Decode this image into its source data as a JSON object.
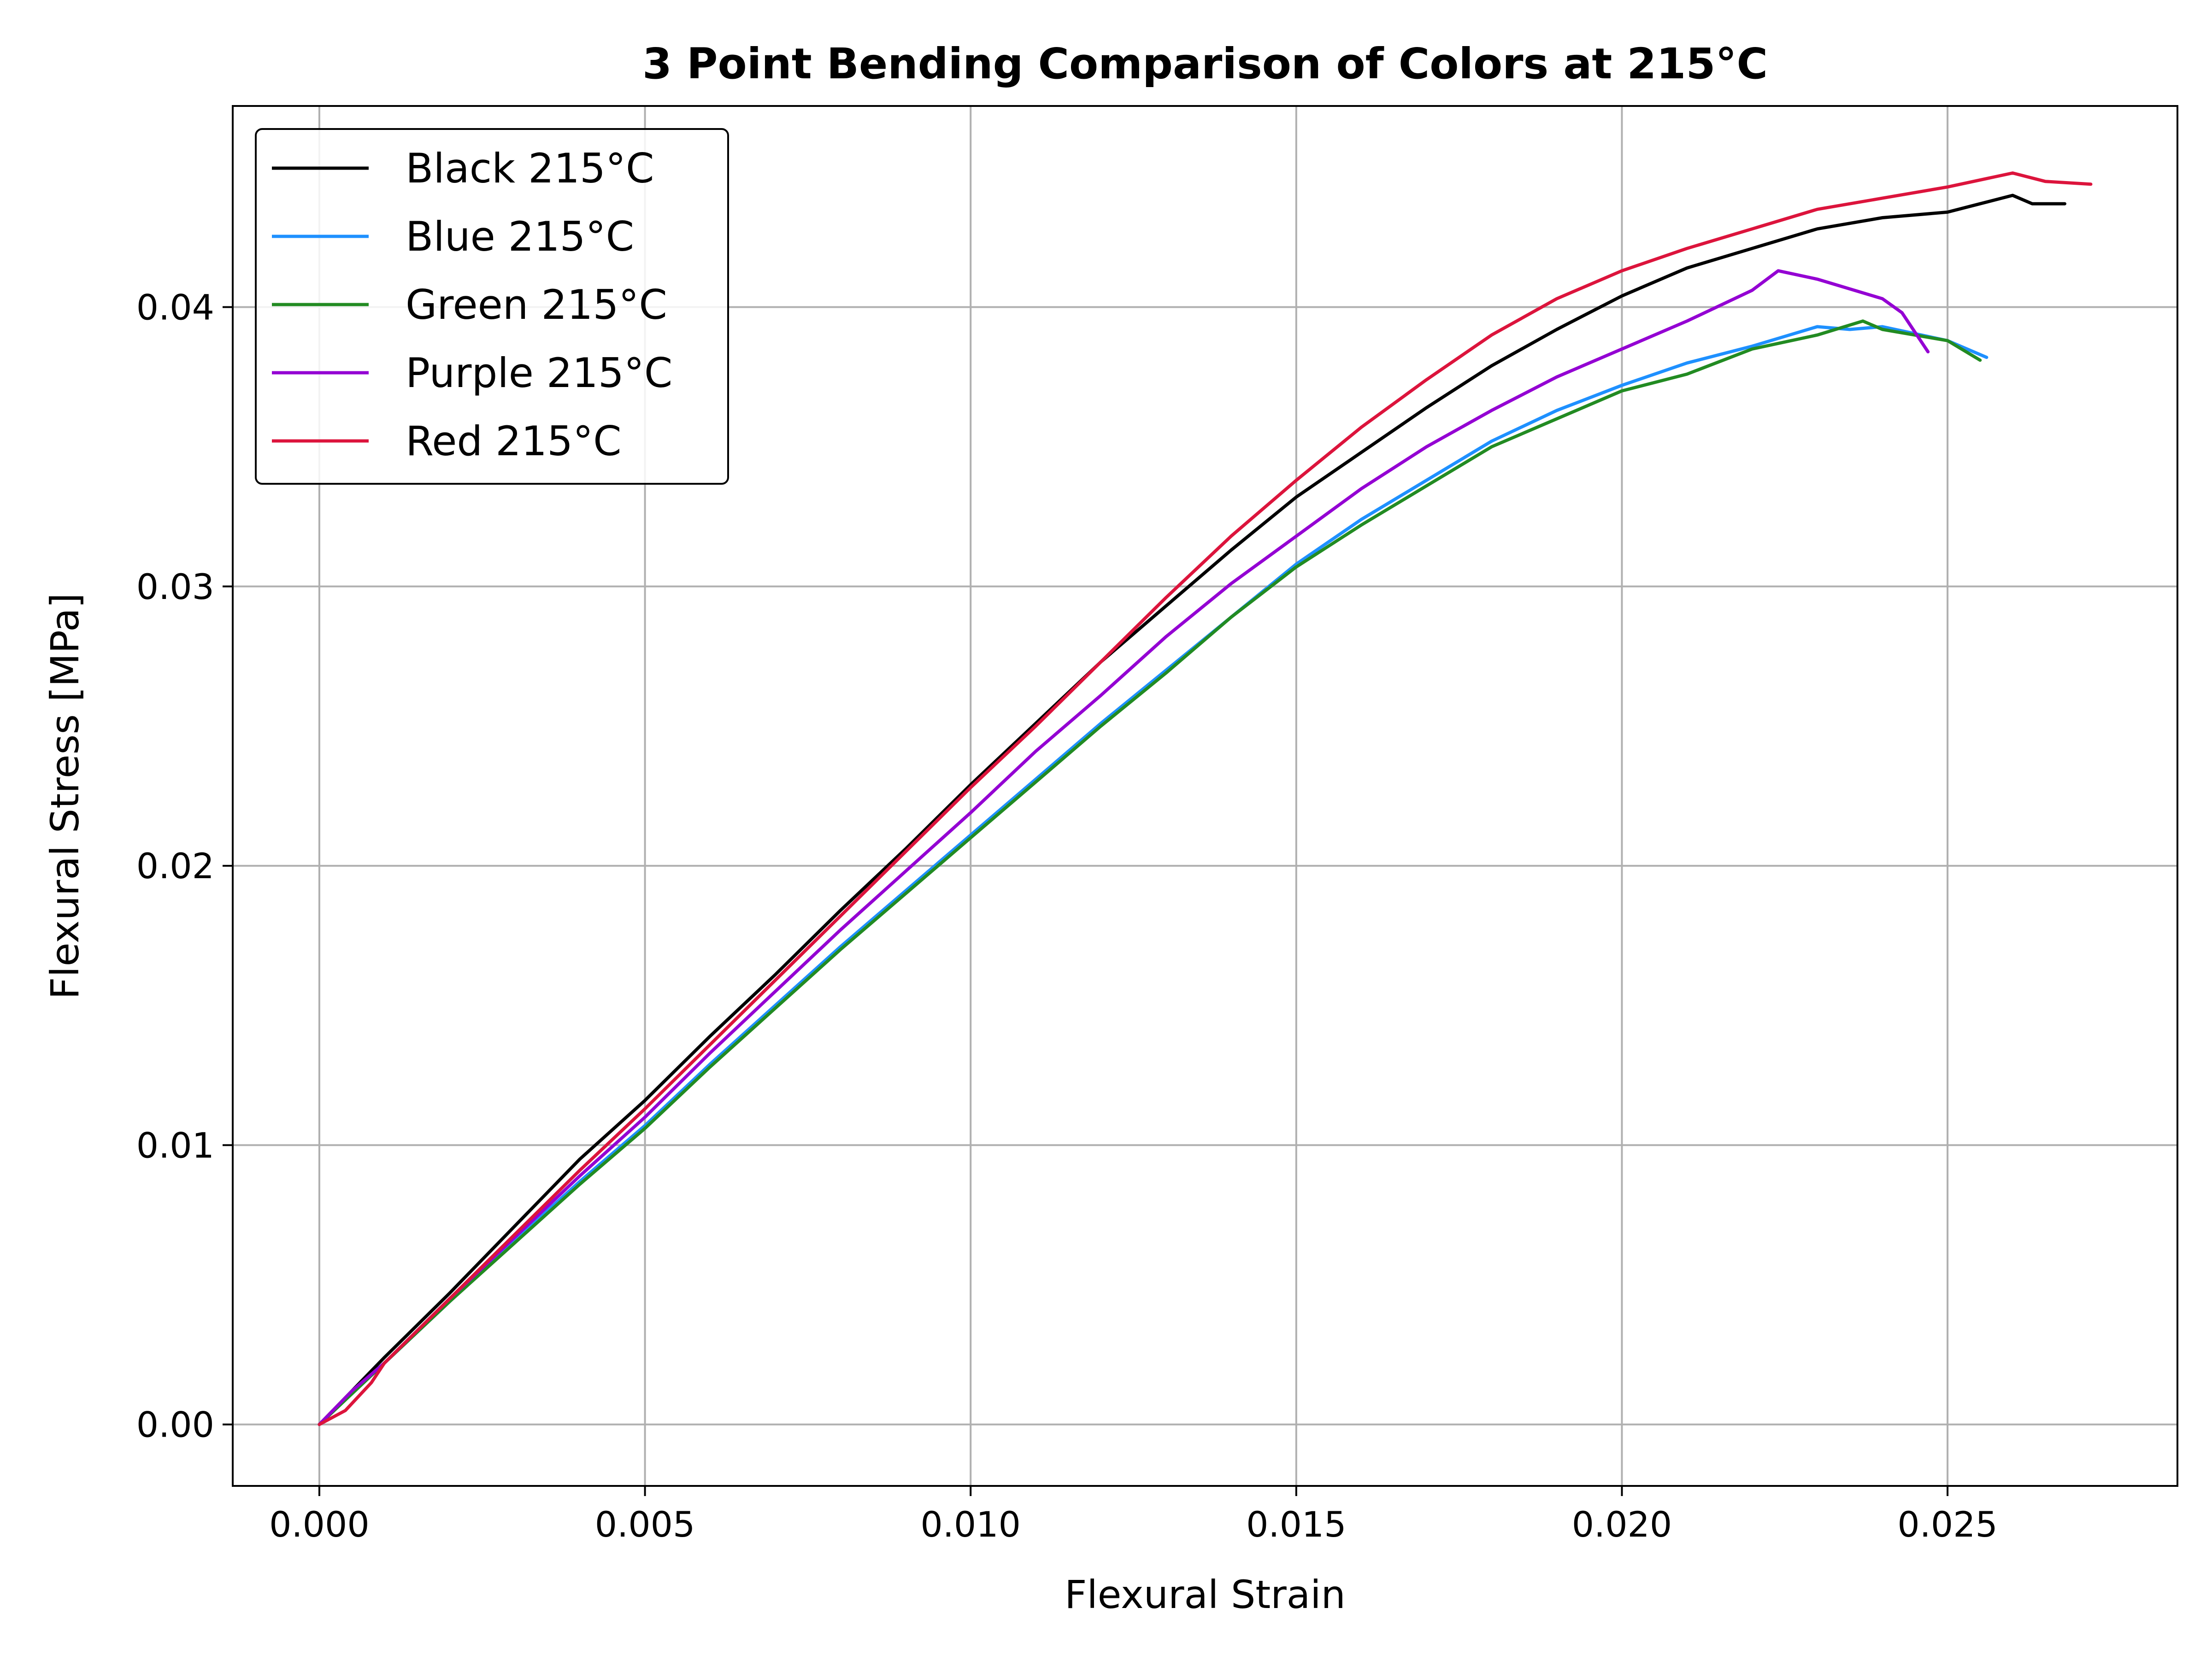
{
  "chart_data": {
    "type": "line",
    "title": "3 Point Bending Comparison of Colors at 215°C",
    "xlabel": "Flexural Strain",
    "ylabel": "Flexural Stress [MPa]",
    "xlim": [
      -0.00133,
      0.02853
    ],
    "ylim": [
      -0.0022,
      0.0472
    ],
    "grid": true,
    "legend_position": "top-left",
    "x_ticks": [
      "0.000",
      "0.005",
      "0.010",
      "0.015",
      "0.020",
      "0.025"
    ],
    "x_tick_values": [
      0,
      0.005,
      0.01,
      0.015,
      0.02,
      0.025
    ],
    "y_ticks": [
      "0.00",
      "0.01",
      "0.02",
      "0.03",
      "0.04"
    ],
    "y_tick_values": [
      0,
      0.01,
      0.02,
      0.03,
      0.04
    ],
    "series": [
      {
        "name": "Black 215°C",
        "color": "#000000",
        "points": [
          [
            0,
            0
          ],
          [
            0.0005,
            0.0012
          ],
          [
            0.001,
            0.0024
          ],
          [
            0.002,
            0.0047
          ],
          [
            0.003,
            0.0071
          ],
          [
            0.004,
            0.0095
          ],
          [
            0.005,
            0.0116
          ],
          [
            0.006,
            0.0139
          ],
          [
            0.007,
            0.0161
          ],
          [
            0.008,
            0.0184
          ],
          [
            0.009,
            0.0206
          ],
          [
            0.01,
            0.0229
          ],
          [
            0.011,
            0.0251
          ],
          [
            0.012,
            0.0273
          ],
          [
            0.013,
            0.0293
          ],
          [
            0.014,
            0.0313
          ],
          [
            0.015,
            0.0332
          ],
          [
            0.016,
            0.0348
          ],
          [
            0.017,
            0.0364
          ],
          [
            0.018,
            0.0379
          ],
          [
            0.019,
            0.0392
          ],
          [
            0.02,
            0.0404
          ],
          [
            0.021,
            0.0414
          ],
          [
            0.022,
            0.0421
          ],
          [
            0.023,
            0.0428
          ],
          [
            0.024,
            0.0432
          ],
          [
            0.025,
            0.0434
          ],
          [
            0.0255,
            0.0437
          ],
          [
            0.026,
            0.044
          ],
          [
            0.0263,
            0.0437
          ],
          [
            0.0268,
            0.0437
          ]
        ]
      },
      {
        "name": "Blue 215°C",
        "color": "#1e90ff",
        "points": [
          [
            0,
            0
          ],
          [
            0.0005,
            0.0011
          ],
          [
            0.001,
            0.0022
          ],
          [
            0.002,
            0.0044
          ],
          [
            0.003,
            0.0066
          ],
          [
            0.004,
            0.0087
          ],
          [
            0.005,
            0.0107
          ],
          [
            0.006,
            0.0129
          ],
          [
            0.007,
            0.015
          ],
          [
            0.008,
            0.0171
          ],
          [
            0.009,
            0.0191
          ],
          [
            0.01,
            0.0211
          ],
          [
            0.011,
            0.0231
          ],
          [
            0.012,
            0.0251
          ],
          [
            0.013,
            0.027
          ],
          [
            0.014,
            0.0289
          ],
          [
            0.015,
            0.0308
          ],
          [
            0.016,
            0.0324
          ],
          [
            0.017,
            0.0338
          ],
          [
            0.018,
            0.0352
          ],
          [
            0.019,
            0.0363
          ],
          [
            0.02,
            0.0372
          ],
          [
            0.021,
            0.038
          ],
          [
            0.022,
            0.0386
          ],
          [
            0.023,
            0.0393
          ],
          [
            0.0235,
            0.0392
          ],
          [
            0.024,
            0.0393
          ],
          [
            0.025,
            0.0388
          ],
          [
            0.0256,
            0.0382
          ]
        ]
      },
      {
        "name": "Green 215°C",
        "color": "#228b22",
        "points": [
          [
            0,
            0
          ],
          [
            0.0005,
            0.0011
          ],
          [
            0.001,
            0.0022
          ],
          [
            0.002,
            0.0044
          ],
          [
            0.003,
            0.0065
          ],
          [
            0.004,
            0.0086
          ],
          [
            0.005,
            0.0106
          ],
          [
            0.006,
            0.0128
          ],
          [
            0.007,
            0.0149
          ],
          [
            0.008,
            0.017
          ],
          [
            0.009,
            0.019
          ],
          [
            0.01,
            0.021
          ],
          [
            0.011,
            0.023
          ],
          [
            0.012,
            0.025
          ],
          [
            0.013,
            0.0269
          ],
          [
            0.014,
            0.0289
          ],
          [
            0.015,
            0.0307
          ],
          [
            0.016,
            0.0322
          ],
          [
            0.017,
            0.0336
          ],
          [
            0.018,
            0.035
          ],
          [
            0.019,
            0.036
          ],
          [
            0.02,
            0.037
          ],
          [
            0.021,
            0.0376
          ],
          [
            0.022,
            0.0385
          ],
          [
            0.023,
            0.039
          ],
          [
            0.0237,
            0.0395
          ],
          [
            0.024,
            0.0392
          ],
          [
            0.025,
            0.0388
          ],
          [
            0.0255,
            0.0381
          ]
        ]
      },
      {
        "name": "Purple 215°C",
        "color": "#9400d3",
        "points": [
          [
            0,
            0
          ],
          [
            0.0005,
            0.0012
          ],
          [
            0.001,
            0.0022
          ],
          [
            0.002,
            0.0045
          ],
          [
            0.003,
            0.0067
          ],
          [
            0.004,
            0.0089
          ],
          [
            0.005,
            0.011
          ],
          [
            0.006,
            0.0133
          ],
          [
            0.007,
            0.0155
          ],
          [
            0.008,
            0.0177
          ],
          [
            0.009,
            0.0198
          ],
          [
            0.01,
            0.0219
          ],
          [
            0.011,
            0.0241
          ],
          [
            0.012,
            0.0261
          ],
          [
            0.013,
            0.0282
          ],
          [
            0.014,
            0.0301
          ],
          [
            0.015,
            0.0318
          ],
          [
            0.016,
            0.0335
          ],
          [
            0.017,
            0.035
          ],
          [
            0.018,
            0.0363
          ],
          [
            0.019,
            0.0375
          ],
          [
            0.02,
            0.0385
          ],
          [
            0.021,
            0.0395
          ],
          [
            0.022,
            0.0406
          ],
          [
            0.0224,
            0.0413
          ],
          [
            0.023,
            0.041
          ],
          [
            0.024,
            0.0403
          ],
          [
            0.0243,
            0.0398
          ],
          [
            0.0247,
            0.0384
          ]
        ]
      },
      {
        "name": "Red 215°C",
        "color": "#dc143c",
        "points": [
          [
            0,
            0
          ],
          [
            0.0004,
            0.0005
          ],
          [
            0.0008,
            0.0015
          ],
          [
            0.001,
            0.0022
          ],
          [
            0.002,
            0.0045
          ],
          [
            0.003,
            0.0068
          ],
          [
            0.004,
            0.0091
          ],
          [
            0.005,
            0.0113
          ],
          [
            0.006,
            0.0136
          ],
          [
            0.007,
            0.0159
          ],
          [
            0.008,
            0.0182
          ],
          [
            0.009,
            0.0205
          ],
          [
            0.01,
            0.0228
          ],
          [
            0.011,
            0.025
          ],
          [
            0.012,
            0.0273
          ],
          [
            0.013,
            0.0296
          ],
          [
            0.014,
            0.0318
          ],
          [
            0.015,
            0.0338
          ],
          [
            0.016,
            0.0357
          ],
          [
            0.017,
            0.0374
          ],
          [
            0.018,
            0.039
          ],
          [
            0.019,
            0.0403
          ],
          [
            0.02,
            0.0413
          ],
          [
            0.021,
            0.0421
          ],
          [
            0.022,
            0.0428
          ],
          [
            0.023,
            0.0435
          ],
          [
            0.024,
            0.0439
          ],
          [
            0.025,
            0.0443
          ],
          [
            0.026,
            0.0448
          ],
          [
            0.0265,
            0.0445
          ],
          [
            0.0272,
            0.0444
          ]
        ]
      }
    ]
  }
}
